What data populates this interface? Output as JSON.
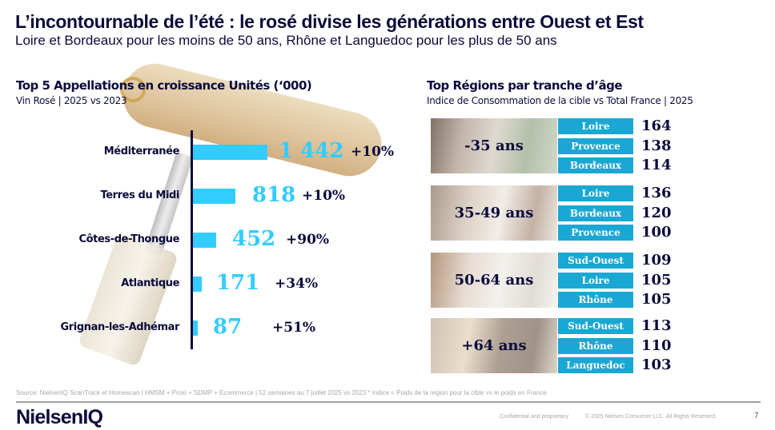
{
  "header": {
    "title": "L’incontournable de l’été : le rosé divise les générations entre Ouest et Est",
    "subtitle": "Loire et Bordeaux pour les moins de 50 ans, Rhône et Languedoc pour les plus de 50 ans"
  },
  "colors": {
    "navy": "#0b0b3b",
    "bar": "#33ccff",
    "region_box": "#1aa7d4"
  },
  "chart_data": [
    {
      "type": "bar",
      "orientation": "horizontal",
      "title": "Top 5 Appellations en croissance Unités (‘000)",
      "subtitle": "Vin Rosé | 2025 vs 2023",
      "categories": [
        "Méditerranée",
        "Terres du Midi",
        "Côtes-de-Thongue",
        "Atlantique",
        "Grignan-les-Adhémar"
      ],
      "values": [
        1442,
        818,
        452,
        171,
        87
      ],
      "value_labels": [
        "1 442",
        "818",
        "452",
        "171",
        "87"
      ],
      "growth_labels": [
        "+10%",
        "+10%",
        "+90%",
        "+34%",
        "+51%"
      ],
      "xlim": [
        0,
        1442
      ]
    },
    {
      "type": "table",
      "title": "Top Régions par tranche d’âge",
      "subtitle": "Indice de Consommation de la cible vs Total France | 2025",
      "groups": [
        {
          "age": "-35 ans",
          "regions": [
            {
              "name": "Loire",
              "value": "164"
            },
            {
              "name": "Provence",
              "value": "138"
            },
            {
              "name": "Bordeaux",
              "value": "114"
            }
          ]
        },
        {
          "age": "35-49 ans",
          "regions": [
            {
              "name": "Loire",
              "value": "136"
            },
            {
              "name": "Bordeaux",
              "value": "120"
            },
            {
              "name": "Provence",
              "value": "100"
            }
          ]
        },
        {
          "age": "50-64 ans",
          "regions": [
            {
              "name": "Sud-Ouest",
              "value": "109"
            },
            {
              "name": "Loire",
              "value": "105"
            },
            {
              "name": "Rhône",
              "value": "105"
            }
          ]
        },
        {
          "age": "+64 ans",
          "regions": [
            {
              "name": "Sud-Ouest",
              "value": "113"
            },
            {
              "name": "Rhône",
              "value": "110"
            },
            {
              "name": "Languedoc",
              "value": "103"
            }
          ]
        }
      ]
    }
  ],
  "footer": {
    "source": "Source: NielsenIQ ScanTrack et Homescan  I HMSM + Proxi + SDMP + Ecommerce | 52 semaines au 7 juillet 2025 vs 2023 *  Indice = Poids de la region pour la cible vs le poids en France",
    "logo": "NielsenIQ",
    "confidential": "Confidential and proprietary",
    "copyright": "© 2025 Nielsen Consumer LLC. All Rights Reserved.",
    "page_number": "7"
  }
}
